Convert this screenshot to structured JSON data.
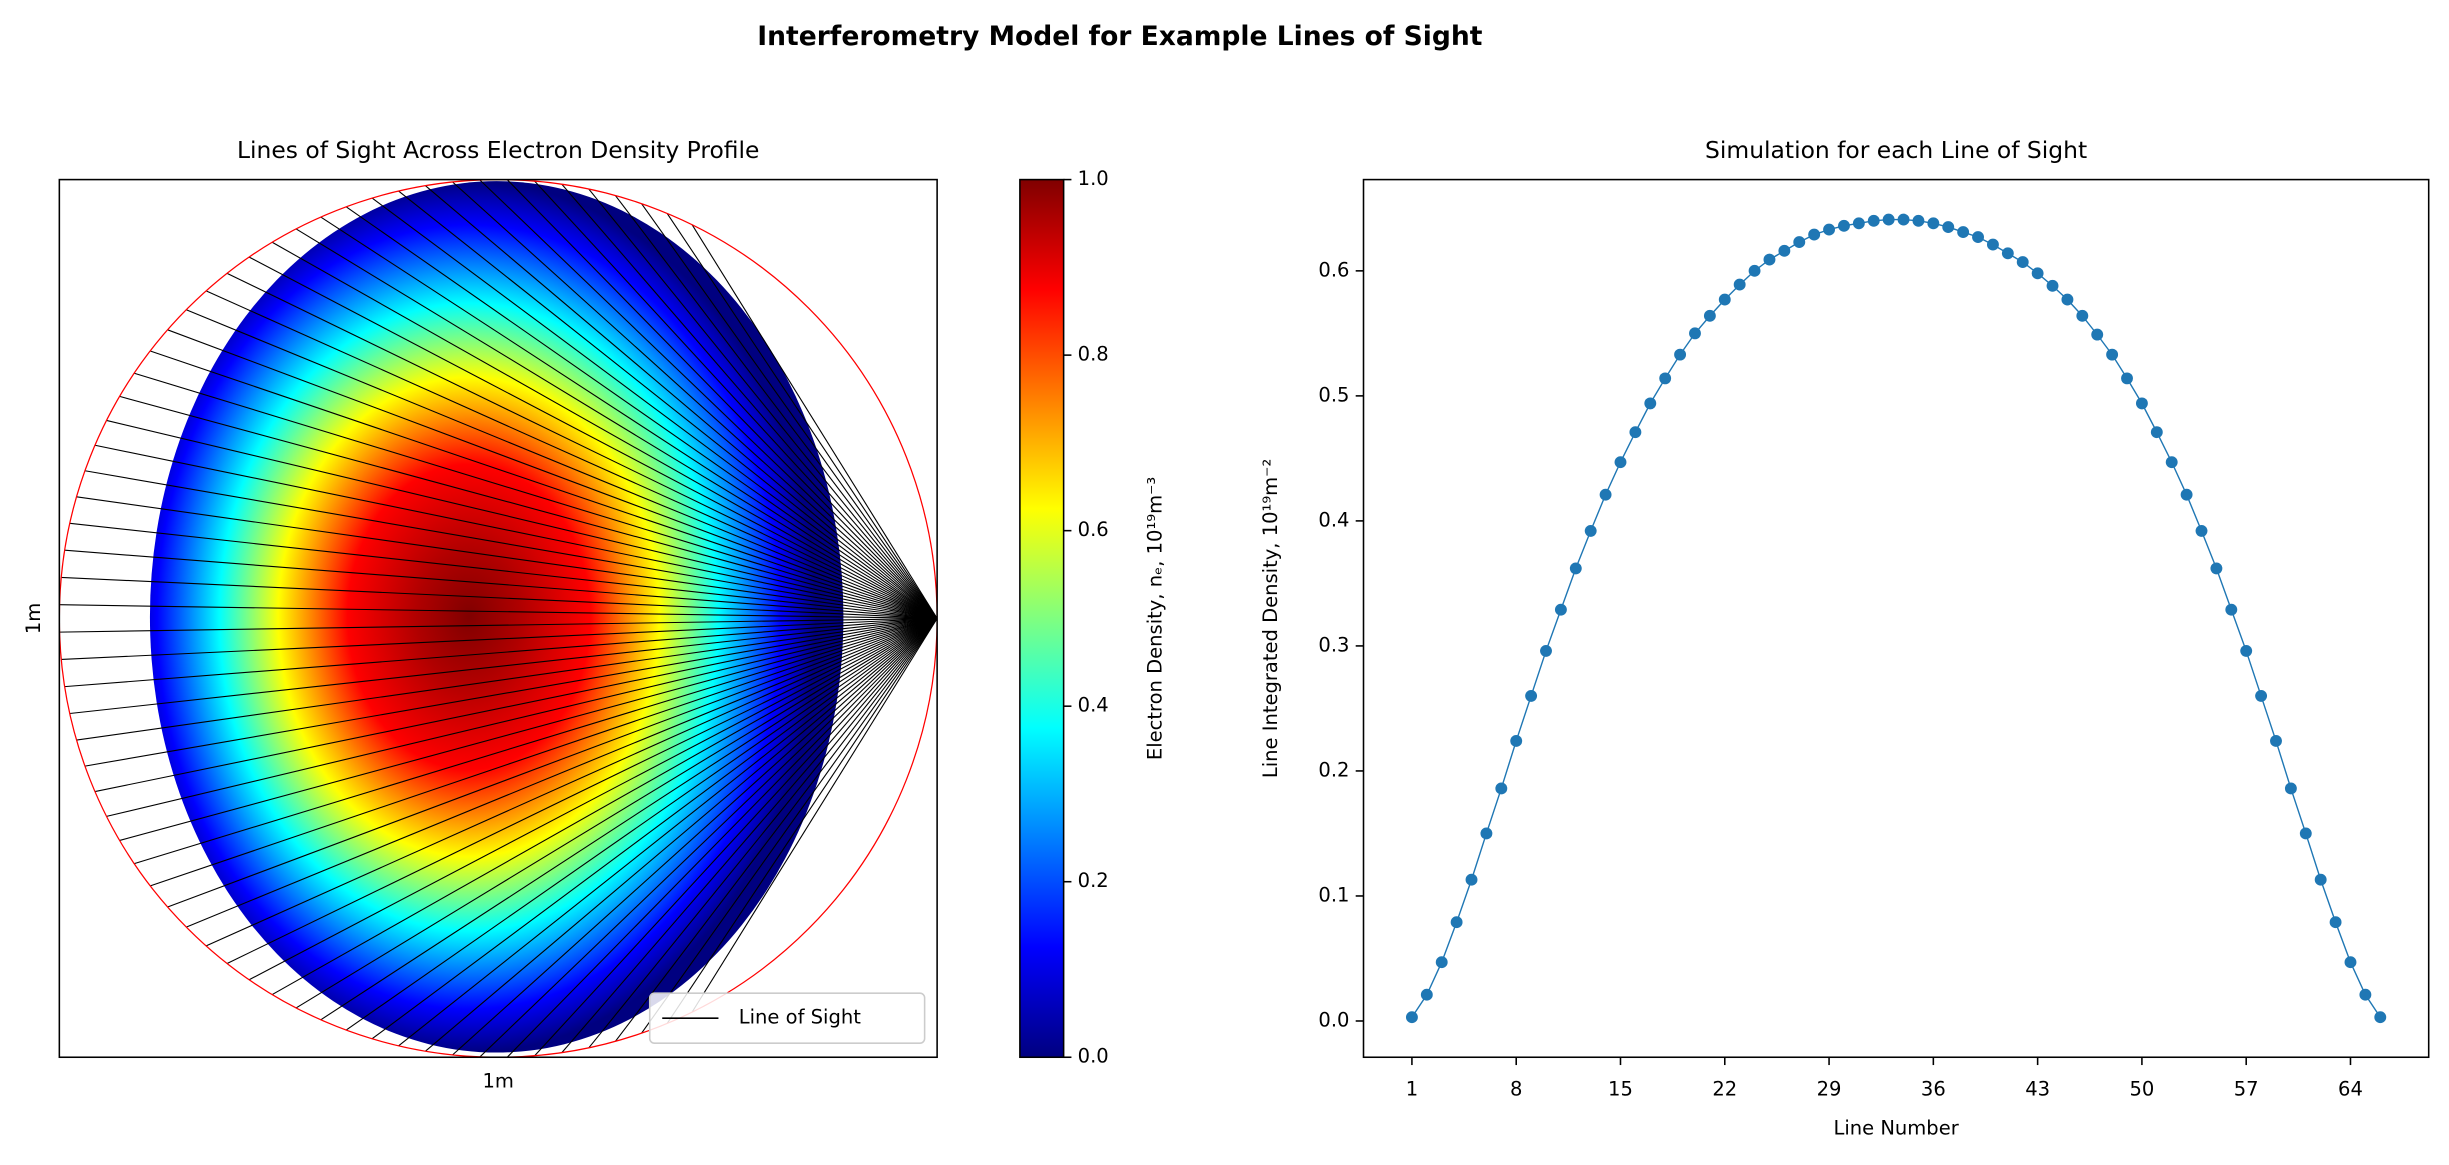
{
  "suptitle": "Interferometry Model for Example Lines of Sight",
  "chart_data": [
    {
      "type": "image",
      "title": "Lines of Sight Across Electron Density Profile",
      "xlabel": "1m",
      "ylabel": "1m",
      "legend": {
        "label": "Line of Sight",
        "loc": "lower right",
        "color": "#000000"
      },
      "circle_color": "#ff0000",
      "colorbar": {
        "label": "Electron Density, nₑ, 10¹⁹m⁻³",
        "lim": [
          0,
          1
        ],
        "ticks": [
          {
            "value": 0,
            "label": "0.0"
          },
          0.2,
          0.4,
          0.6,
          0.8,
          {
            "value": 1,
            "label": "1.0"
          }
        ]
      }
    },
    {
      "type": "line",
      "title": "Simulation for each Line of Sight",
      "xlabel": "Line Number",
      "ylabel": "Line Integrated Density, 10¹⁹m⁻²",
      "color": "#1f77b4",
      "xlim": [
        -2.25,
        69.25
      ],
      "ylim": [
        -0.029,
        0.673
      ],
      "xticks": [
        1,
        8,
        15,
        22,
        29,
        36,
        43,
        50,
        57,
        64
      ],
      "yticks": [
        {
          "value": 0,
          "label": "0.0"
        },
        0.1,
        0.2,
        0.3,
        0.4,
        0.5,
        0.6
      ],
      "x": [
        1,
        2,
        3,
        4,
        5,
        6,
        7,
        8,
        9,
        10,
        11,
        12,
        13,
        14,
        15,
        16,
        17,
        18,
        19,
        20,
        21,
        22,
        23,
        24,
        25,
        26,
        27,
        28,
        29,
        30,
        31,
        32,
        33,
        34,
        35,
        36,
        37,
        38,
        39,
        40,
        41,
        42,
        43,
        44,
        45,
        46,
        47,
        48,
        49,
        50,
        51,
        52,
        53,
        54,
        55,
        56,
        57,
        58,
        59,
        60,
        61,
        62,
        63,
        64,
        65,
        66
      ],
      "values": [
        0.003,
        0.021,
        0.047,
        0.079,
        0.113,
        0.15,
        0.186,
        0.224,
        0.26,
        0.296,
        0.329,
        0.362,
        0.392,
        0.421,
        0.447,
        0.471,
        0.494,
        0.514,
        0.533,
        0.55,
        0.564,
        0.577,
        0.589,
        0.6,
        0.609,
        0.616,
        0.623,
        0.629,
        0.633,
        0.636,
        0.638,
        0.64,
        0.641,
        0.641,
        0.64,
        0.638,
        0.635,
        0.631,
        0.627,
        0.621,
        0.614,
        0.607,
        0.598,
        0.588,
        0.577,
        0.564,
        0.549,
        0.533,
        0.514,
        0.494,
        0.471,
        0.447,
        0.421,
        0.392,
        0.362,
        0.329,
        0.296,
        0.26,
        0.224,
        0.186,
        0.15,
        0.113,
        0.079,
        0.047,
        0.021,
        0.003
      ]
    }
  ]
}
